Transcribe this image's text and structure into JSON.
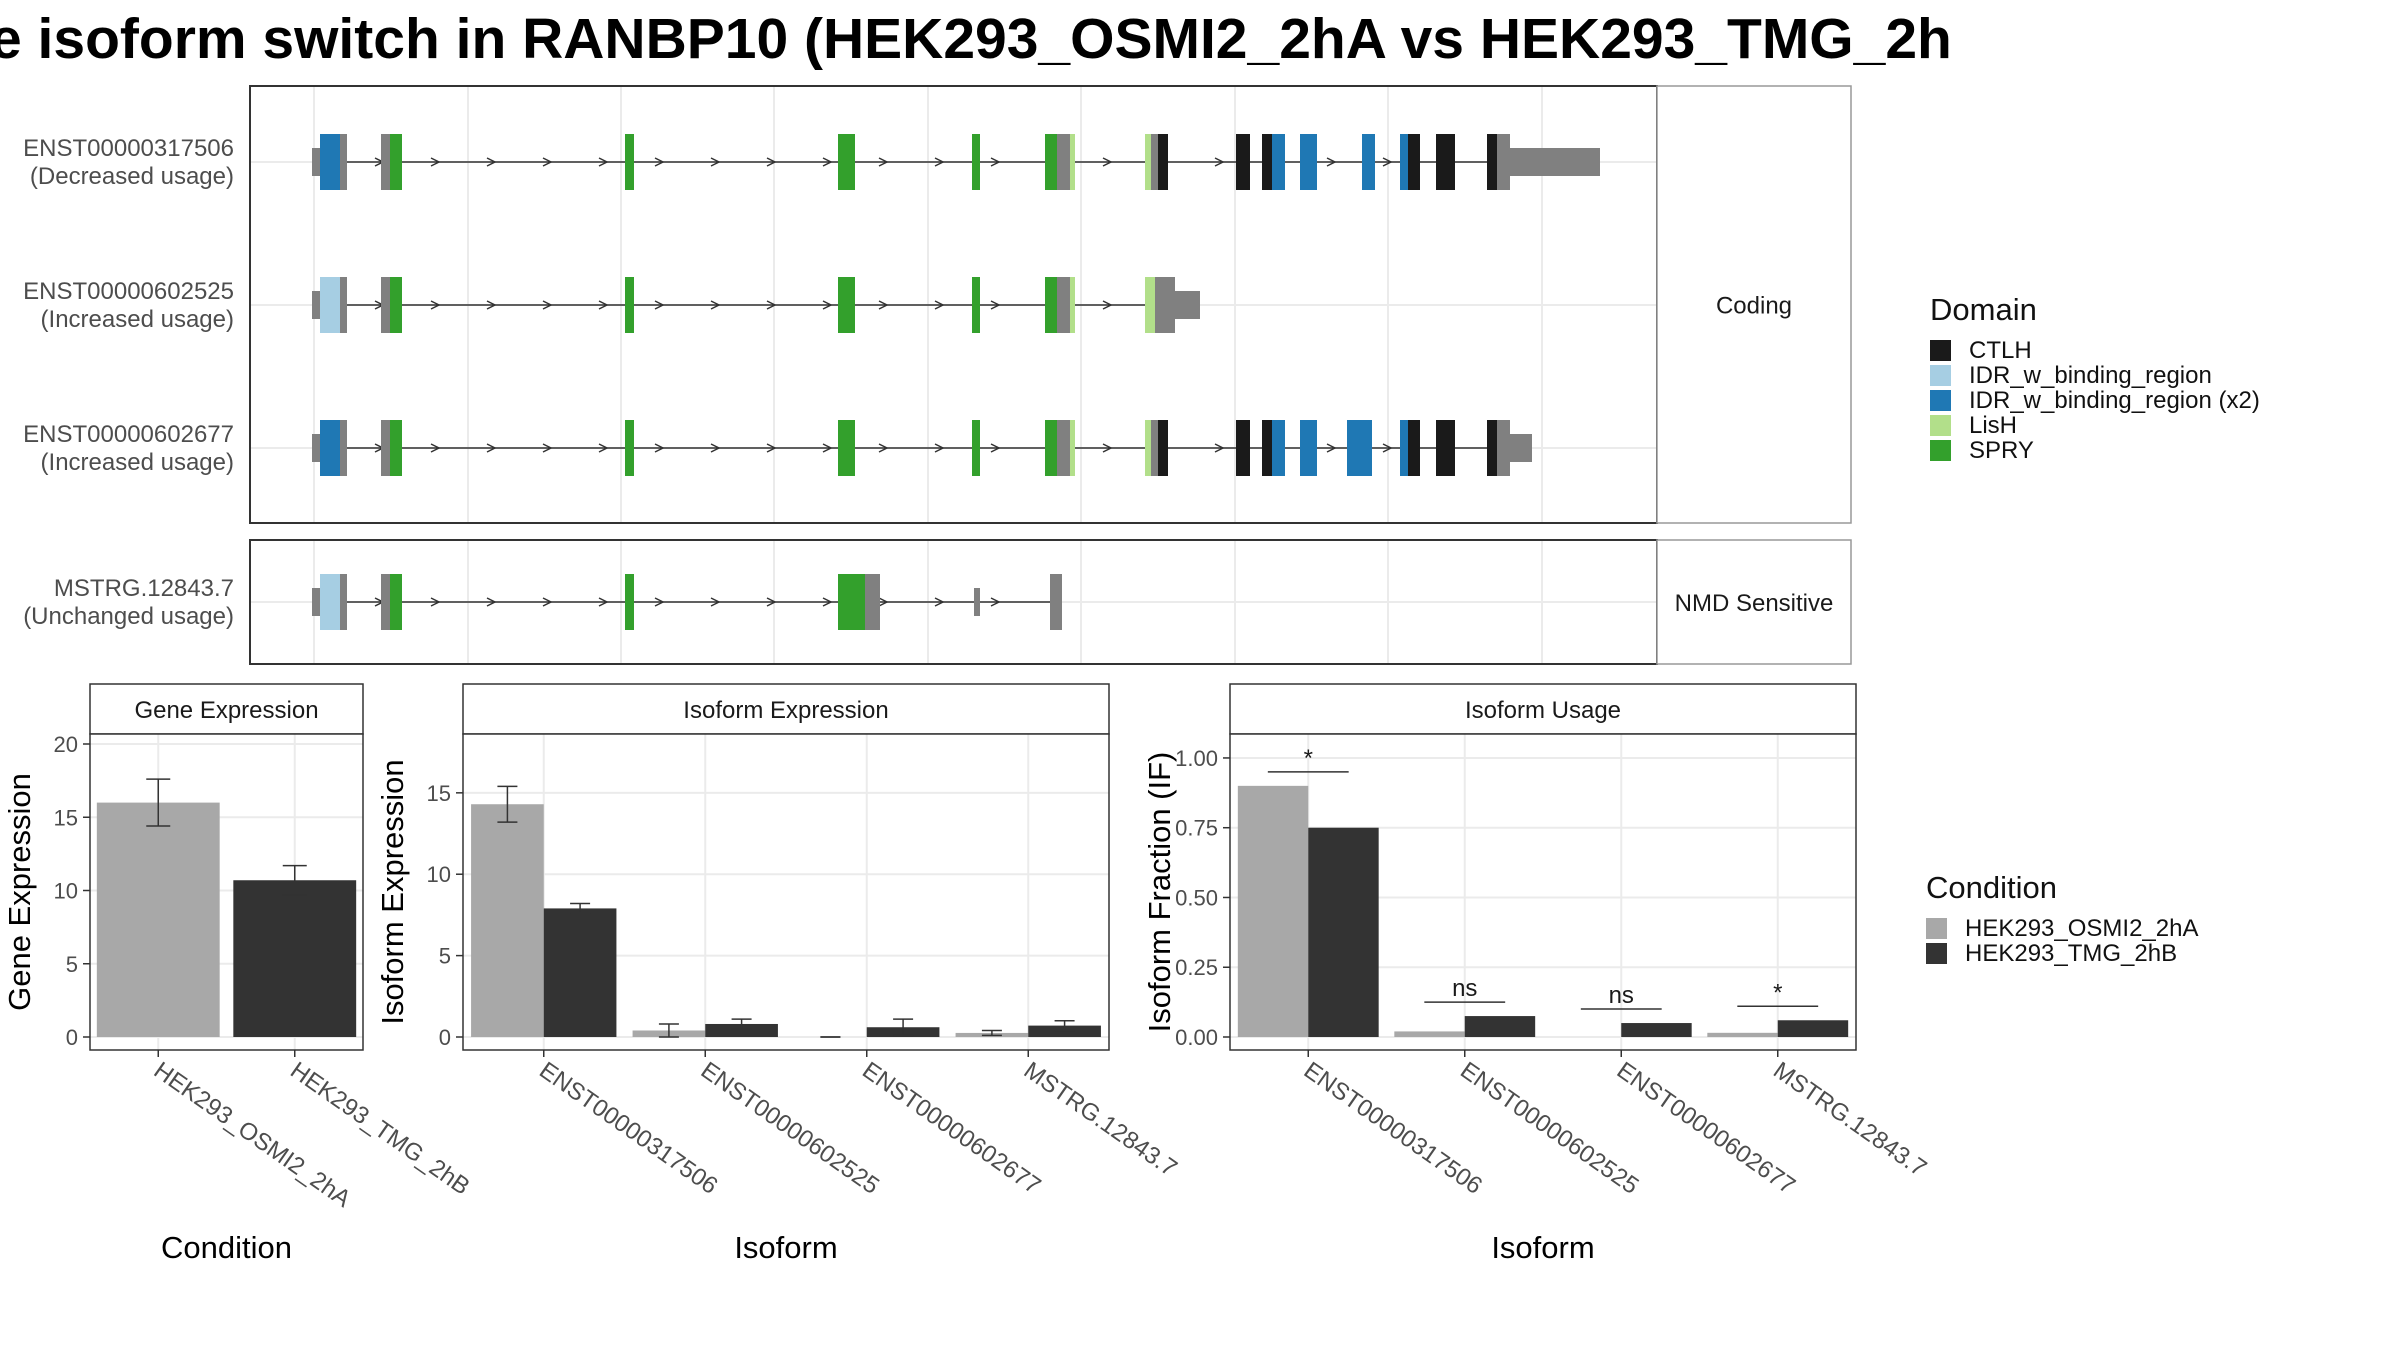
{
  "title": "e isoform switch in RANBP10 (HEK293_OSMI2_2hA vs HEK293_TMG_2h",
  "colors": {
    "CTLH": "#1a1a1a",
    "IDR_w_binding_region": "#a6cee3",
    "IDR_w_binding_region (x2)": "#1f78b4",
    "LisH": "#b2df8a",
    "SPRY": "#33a02c",
    "utr": "#808080",
    "condition_a": "#a8a8a8",
    "condition_b": "#333333"
  },
  "structure_panel": {
    "coding_label": "Coding",
    "nmd_label": "NMD Sensitive",
    "transcripts": [
      {
        "id": "ENST00000317506",
        "usage": "(Decreased usage)",
        "group": "coding"
      },
      {
        "id": "ENST00000602525",
        "usage": "(Increased usage)",
        "group": "coding"
      },
      {
        "id": "ENST00000602677",
        "usage": "(Increased usage)",
        "group": "coding"
      },
      {
        "id": "MSTRG.12843.7",
        "usage": "(Unchanged usage)",
        "group": "nmd"
      }
    ]
  },
  "domain_legend": {
    "title": "Domain",
    "items": [
      {
        "label": "CTLH",
        "color": "#1a1a1a"
      },
      {
        "label": "IDR_w_binding_region",
        "color": "#a6cee3"
      },
      {
        "label": "IDR_w_binding_region (x2)",
        "color": "#1f78b4"
      },
      {
        "label": "LisH",
        "color": "#b2df8a"
      },
      {
        "label": "SPRY",
        "color": "#33a02c"
      }
    ]
  },
  "condition_legend": {
    "title": "Condition",
    "items": [
      {
        "label": "HEK293_OSMI2_2hA",
        "color": "#a8a8a8"
      },
      {
        "label": "HEK293_TMG_2hB",
        "color": "#333333"
      }
    ]
  },
  "chart_data": [
    {
      "type": "bar",
      "title": "Gene Expression",
      "xlabel": "Condition",
      "ylabel": "Gene Expression",
      "ylim": [
        0,
        20
      ],
      "yticks": [
        "0",
        "5",
        "10",
        "15",
        "20"
      ],
      "categories": [
        "HEK293_OSMI2_2hA",
        "HEK293_TMG_2hB"
      ],
      "values": [
        16.0,
        10.7
      ],
      "errors": [
        [
          14.4,
          17.6
        ],
        [
          9.7,
          11.7
        ]
      ]
    },
    {
      "type": "bar",
      "title": "Isoform Expression",
      "xlabel": "Isoform",
      "ylabel": "Isoform Expression",
      "ylim": [
        0,
        18
      ],
      "yticks": [
        "0",
        "5",
        "10",
        "15"
      ],
      "categories": [
        "ENST00000317506",
        "ENST00000602525",
        "ENST00000602677",
        "MSTRG.12843.7"
      ],
      "series": [
        {
          "name": "HEK293_OSMI2_2hA",
          "values": [
            14.3,
            0.4,
            0.0,
            0.25
          ],
          "errors": [
            [
              13.2,
              15.4
            ],
            [
              0.0,
              0.8
            ],
            [
              0.0,
              0.0
            ],
            [
              0.1,
              0.4
            ]
          ]
        },
        {
          "name": "HEK293_TMG_2hB",
          "values": [
            7.9,
            0.8,
            0.6,
            0.7
          ],
          "errors": [
            [
              7.6,
              8.2
            ],
            [
              0.5,
              1.1
            ],
            [
              0.1,
              1.1
            ],
            [
              0.4,
              1.0
            ]
          ]
        }
      ]
    },
    {
      "type": "bar",
      "title": "Isoform Usage",
      "xlabel": "Isoform",
      "ylabel": "Isoform Fraction (IF)",
      "ylim": [
        0,
        1.05
      ],
      "yticks": [
        "0.00",
        "0.25",
        "0.50",
        "0.75",
        "1.00"
      ],
      "categories": [
        "ENST00000317506",
        "ENST00000602525",
        "ENST00000602677",
        "MSTRG.12843.7"
      ],
      "series": [
        {
          "name": "HEK293_OSMI2_2hA",
          "values": [
            0.9,
            0.02,
            0.0,
            0.015
          ]
        },
        {
          "name": "HEK293_TMG_2hB",
          "values": [
            0.75,
            0.075,
            0.05,
            0.06
          ]
        }
      ],
      "significance": [
        "*",
        "ns",
        "ns",
        "*"
      ]
    }
  ]
}
